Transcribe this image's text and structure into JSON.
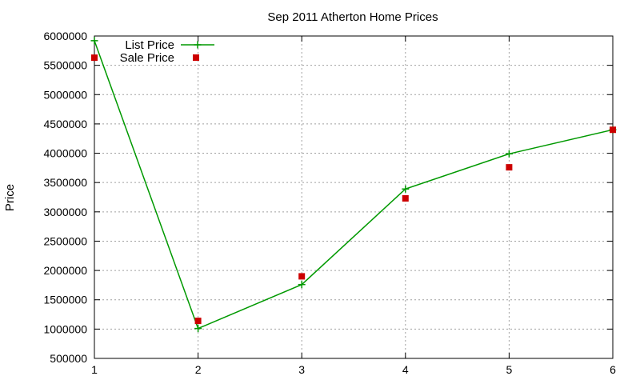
{
  "chart_data": {
    "type": "line",
    "title": "Sep 2011 Atherton Home Prices",
    "xlabel": "",
    "ylabel": "Price",
    "x": [
      1,
      2,
      3,
      4,
      5,
      6
    ],
    "xlim": [
      1,
      6
    ],
    "ylim": [
      500000,
      6000000
    ],
    "xticks": [
      "1",
      "2",
      "3",
      "4",
      "5",
      "6"
    ],
    "yticks": [
      "500000",
      "1000000",
      "1500000",
      "2000000",
      "2500000",
      "3000000",
      "3500000",
      "4000000",
      "4500000",
      "5000000",
      "5500000",
      "6000000"
    ],
    "grid": true,
    "legend_position": "top-left",
    "series": [
      {
        "name": "List Price",
        "style": "line+plus",
        "color": "#009900",
        "values": [
          5920000,
          1010000,
          1760000,
          3390000,
          3990000,
          4400000
        ]
      },
      {
        "name": "Sale Price",
        "style": "square",
        "color": "#cc0000",
        "values": [
          5630000,
          1140000,
          1900000,
          3230000,
          3760000,
          4400000
        ]
      }
    ]
  }
}
